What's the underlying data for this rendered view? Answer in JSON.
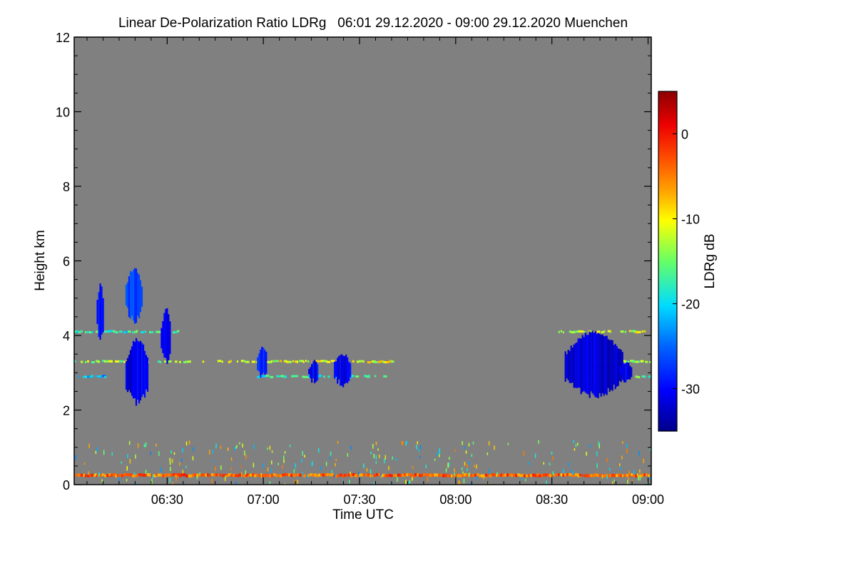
{
  "chart_data": {
    "type": "heatmap",
    "title": "Linear De-Polarization Ratio LDRg   06:01 29.12.2020 - 09:00 29.12.2020 Muenchen",
    "xlabel": "Time UTC",
    "ylabel": "Height km",
    "x_range_minutes_utc": [
      361,
      541
    ],
    "y_range_km": [
      0,
      12
    ],
    "x_ticks": [
      {
        "label": "06:30",
        "minutes": 390
      },
      {
        "label": "07:00",
        "minutes": 420
      },
      {
        "label": "07:30",
        "minutes": 450
      },
      {
        "label": "08:00",
        "minutes": 480
      },
      {
        "label": "08:30",
        "minutes": 510
      },
      {
        "label": "09:00",
        "minutes": 540
      }
    ],
    "y_ticks": [
      {
        "label": "0",
        "value": 0
      },
      {
        "label": "2",
        "value": 2
      },
      {
        "label": "4",
        "value": 4
      },
      {
        "label": "6",
        "value": 6
      },
      {
        "label": "8",
        "value": 8
      },
      {
        "label": "10",
        "value": 10
      },
      {
        "label": "12",
        "value": 12
      }
    ],
    "background_color": "#808080",
    "colorbar": {
      "label": "LDRg dB",
      "range_db": [
        -35,
        5
      ],
      "ticks": [
        {
          "label": "0",
          "value": 0
        },
        {
          "label": "-10",
          "value": -10
        },
        {
          "label": "-20",
          "value": -20
        },
        {
          "label": "-30",
          "value": -30
        }
      ]
    },
    "features": [
      {
        "name": "upper-cloud-streak-1",
        "t_start": 368,
        "t_end": 370,
        "h_low": 3.9,
        "h_high": 5.4,
        "ldr_db": -30
      },
      {
        "name": "upper-cloud-streak-2",
        "t_start": 377,
        "t_end": 382,
        "h_low": 4.4,
        "h_high": 5.8,
        "ldr_db": -27
      },
      {
        "name": "upper-cloud-streak-3",
        "t_start": 388,
        "t_end": 391,
        "h_low": 3.3,
        "h_high": 4.7,
        "ldr_db": -30
      },
      {
        "name": "falling-cloud-column",
        "t_start": 377,
        "t_end": 384,
        "h_low": 2.2,
        "h_high": 3.9,
        "ldr_db": -31
      },
      {
        "name": "midlevel-patch-0700",
        "t_start": 418,
        "t_end": 421,
        "h_low": 2.9,
        "h_high": 3.7,
        "ldr_db": -29
      },
      {
        "name": "midlevel-patch-0715",
        "t_start": 434,
        "t_end": 437,
        "h_low": 2.8,
        "h_high": 3.3,
        "ldr_db": -30
      },
      {
        "name": "midlevel-patch-0722",
        "t_start": 442,
        "t_end": 447,
        "h_low": 2.7,
        "h_high": 3.5,
        "ldr_db": -31
      },
      {
        "name": "main-cloud-mass-0820",
        "t_start": 514,
        "t_end": 532,
        "h_low": 2.4,
        "h_high": 4.1,
        "ldr_db": -32
      },
      {
        "name": "trailing-patch-0850",
        "t_start": 531,
        "t_end": 535,
        "h_low": 2.8,
        "h_high": 3.3,
        "ldr_db": -31
      }
    ],
    "layers": [
      {
        "name": "layer-4.1km",
        "t_start": 361,
        "t_end": 394,
        "height_km": 4.1,
        "ldr_db": -18
      },
      {
        "name": "layer-3.3km-early",
        "t_start": 361,
        "t_end": 398,
        "height_km": 3.3,
        "ldr_db": -14
      },
      {
        "name": "layer-2.9km-early",
        "t_start": 361,
        "t_end": 372,
        "height_km": 2.9,
        "ldr_db": -21
      },
      {
        "name": "layer-3.3km-mid",
        "t_start": 401,
        "t_end": 460,
        "height_km": 3.3,
        "ldr_db": -11
      },
      {
        "name": "layer-2.9km-mid",
        "t_start": 418,
        "t_end": 458,
        "height_km": 2.9,
        "ldr_db": -18
      },
      {
        "name": "layer-4.1km-late",
        "t_start": 512,
        "t_end": 539,
        "height_km": 4.1,
        "ldr_db": -12
      },
      {
        "name": "layer-3.3km-late",
        "t_start": 523,
        "t_end": 541,
        "height_km": 3.3,
        "ldr_db": -14
      },
      {
        "name": "layer-2.9km-late",
        "t_start": 520,
        "t_end": 541,
        "height_km": 2.9,
        "ldr_db": -17
      },
      {
        "name": "surface-layer",
        "t_start": 361,
        "t_end": 541,
        "height_km": 0.25,
        "ldr_db": -4
      }
    ]
  }
}
